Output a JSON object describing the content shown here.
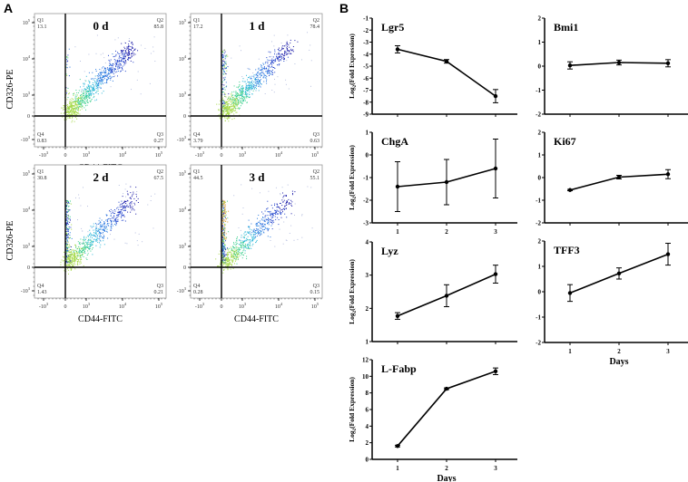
{
  "panels": {
    "a_label": "A",
    "b_label": "B"
  },
  "chart_data": [
    {
      "type": "scatter",
      "panel": "A",
      "title": "0 d",
      "xlabel": "CD44-FITC",
      "ylabel": "CD326-PE",
      "x_ticks": [
        "-10^3",
        "0",
        "10^3",
        "10^4",
        "10^5"
      ],
      "y_ticks": [
        "10^5",
        "10^4",
        "10^3",
        "0",
        "-10^3"
      ],
      "quadrants": {
        "Q1": "13.1",
        "Q2": "85.8",
        "Q3": "0.27",
        "Q4": "0.83"
      },
      "quadrant_labels": [
        "Q1",
        "Q2",
        "Q3",
        "Q4"
      ]
    },
    {
      "type": "scatter",
      "panel": "A",
      "title": "1 d",
      "xlabel": "",
      "ylabel": "",
      "x_ticks": [
        "-10^3",
        "0",
        "10^3",
        "10^4",
        "10^5"
      ],
      "y_ticks": [
        "10^5",
        "10^4",
        "10^3",
        "0",
        "-10^3"
      ],
      "quadrants": {
        "Q1": "17.2",
        "Q2": "78.4",
        "Q3": "0.63",
        "Q4": "3.79"
      },
      "quadrant_labels": [
        "Q1",
        "Q2",
        "Q3",
        "Q4"
      ]
    },
    {
      "type": "scatter",
      "panel": "A",
      "title": "2 d",
      "xlabel": "CD44-FITC",
      "ylabel": "CD326-PE",
      "x_ticks": [
        "-10^3",
        "0",
        "10^3",
        "10^4",
        "10^5"
      ],
      "y_ticks": [
        "10^5",
        "10^4",
        "10^3",
        "0",
        "-10^3"
      ],
      "quadrants": {
        "Q1": "30.8",
        "Q2": "67.5",
        "Q3": "0.21",
        "Q4": "1.43"
      },
      "quadrant_labels": [
        "Q1",
        "Q2",
        "Q3",
        "Q4"
      ]
    },
    {
      "type": "scatter",
      "panel": "A",
      "title": "3 d",
      "xlabel": "CD44-FITC",
      "ylabel": "",
      "x_ticks": [
        "-10^3",
        "0",
        "10^3",
        "10^4",
        "10^5"
      ],
      "y_ticks": [
        "10^5",
        "10^4",
        "10^3",
        "0",
        "-10^3"
      ],
      "quadrants": {
        "Q1": "44.5",
        "Q2": "55.1",
        "Q3": "0.15",
        "Q4": "0.28"
      },
      "quadrant_labels": [
        "Q1",
        "Q2",
        "Q3",
        "Q4"
      ]
    },
    {
      "type": "line",
      "panel": "B",
      "title": "Lgr5",
      "ylabel": "Log2(Fold Expression)",
      "xlabel": "",
      "x": [
        1,
        2,
        3
      ],
      "x_tick_labels": [],
      "y": [
        -3.6,
        -4.6,
        -7.5
      ],
      "err": [
        0.3,
        0.15,
        0.55
      ],
      "ylim": [
        -9,
        -1
      ],
      "yticks": [
        -1,
        -2,
        -3,
        -4,
        -5,
        -6,
        -7,
        -8,
        -9
      ]
    },
    {
      "type": "line",
      "panel": "B",
      "title": "Bmi1",
      "ylabel": "",
      "xlabel": "",
      "x": [
        1,
        2,
        3
      ],
      "x_tick_labels": [],
      "y": [
        0.03,
        0.15,
        0.12
      ],
      "err": [
        0.15,
        0.1,
        0.15
      ],
      "ylim": [
        -2,
        2
      ],
      "yticks": [
        2,
        1,
        0,
        -1,
        -2
      ]
    },
    {
      "type": "line",
      "panel": "B",
      "title": "ChgA",
      "ylabel": "Log2(Fold Expression)",
      "xlabel": "",
      "x": [
        1,
        2,
        3
      ],
      "x_tick_labels": [
        "1",
        "2",
        "3"
      ],
      "y": [
        -1.4,
        -1.2,
        -0.6
      ],
      "err": [
        1.1,
        1.0,
        1.3
      ],
      "ylim": [
        -3,
        1
      ],
      "yticks": [
        1,
        0,
        -1,
        -2,
        -3
      ]
    },
    {
      "type": "line",
      "panel": "B",
      "title": "Ki67",
      "ylabel": "",
      "xlabel": "",
      "x": [
        1,
        2,
        3
      ],
      "x_tick_labels": [],
      "y": [
        -0.55,
        0.02,
        0.15
      ],
      "err": [
        0.03,
        0.08,
        0.2
      ],
      "ylim": [
        -2,
        2
      ],
      "yticks": [
        2,
        1,
        0,
        -1,
        -2
      ]
    },
    {
      "type": "line",
      "panel": "B",
      "title": "Lyz",
      "ylabel": "Log2(Fold Expression)",
      "xlabel": "",
      "x": [
        1,
        2,
        3
      ],
      "x_tick_labels": [],
      "y": [
        1.77,
        2.38,
        3.03
      ],
      "err": [
        0.1,
        0.33,
        0.27
      ],
      "ylim": [
        1,
        4
      ],
      "yticks": [
        4,
        3,
        2,
        1
      ]
    },
    {
      "type": "line",
      "panel": "B",
      "title": "TFF3",
      "ylabel": "",
      "xlabel": "Days",
      "x": [
        1,
        2,
        3
      ],
      "x_tick_labels": [
        "1",
        "2",
        "3"
      ],
      "y": [
        -0.05,
        0.72,
        1.48
      ],
      "err": [
        0.33,
        0.22,
        0.43
      ],
      "ylim": [
        -2,
        2
      ],
      "yticks": [
        2,
        1,
        0,
        -1,
        -2
      ]
    },
    {
      "type": "line",
      "panel": "B",
      "title": "L-Fabp",
      "ylabel": "Log2(Fold Expression)",
      "xlabel": "Days",
      "x": [
        1,
        2,
        3
      ],
      "x_tick_labels": [
        "1",
        "2",
        "3"
      ],
      "y": [
        1.6,
        8.5,
        10.6
      ],
      "err": [
        0.1,
        0.1,
        0.4
      ],
      "ylim": [
        0,
        12
      ],
      "yticks": [
        12,
        10,
        8,
        6,
        4,
        2,
        0
      ]
    }
  ]
}
